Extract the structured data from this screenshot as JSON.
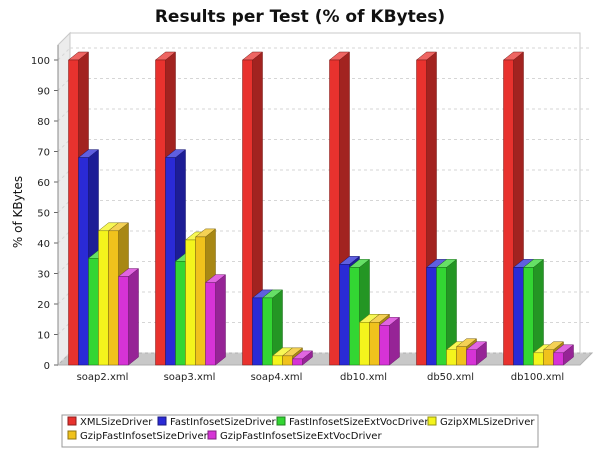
{
  "chart_data": {
    "type": "bar",
    "title": "Results per Test (% of KBytes)",
    "xlabel": "",
    "ylabel": "% of KBytes",
    "ylim": [
      0,
      100
    ],
    "yticks": [
      0,
      10,
      20,
      30,
      40,
      50,
      60,
      70,
      80,
      90,
      100
    ],
    "grid": true,
    "legend_position": "bottom",
    "categories": [
      "soap2.xml",
      "soap3.xml",
      "soap4.xml",
      "db10.xml",
      "db50.xml",
      "db100.xml"
    ],
    "series": [
      {
        "name": "XMLSizeDriver",
        "color": "#e8322e",
        "values": [
          100,
          100,
          100,
          100,
          100,
          100
        ]
      },
      {
        "name": "FastInfosetSizeDriver",
        "color": "#2a2ad6",
        "values": [
          68,
          68,
          22,
          33,
          32,
          32
        ]
      },
      {
        "name": "FastInfosetSizeExtVocDriver",
        "color": "#33d633",
        "values": [
          35,
          34,
          22,
          32,
          32,
          32
        ]
      },
      {
        "name": "GzipXMLSizeDriver",
        "color": "#f4f41c",
        "values": [
          44,
          41,
          3,
          14,
          5,
          4
        ]
      },
      {
        "name": "GzipFastInfosetSizeDriver",
        "color": "#f0c21c",
        "values": [
          44,
          42,
          3,
          14,
          6,
          5
        ]
      },
      {
        "name": "GzipFastInfosetSizeExtVocDriver",
        "color": "#d633d6",
        "values": [
          29,
          27,
          2,
          13,
          5,
          4
        ]
      }
    ]
  }
}
